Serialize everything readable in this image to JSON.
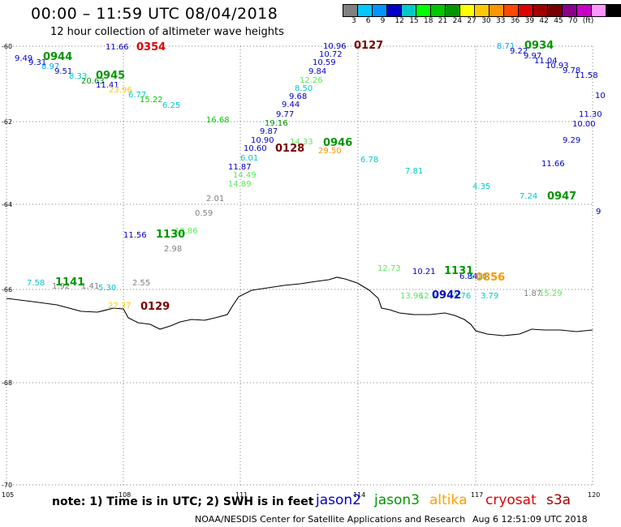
{
  "header": {
    "title": "00:00 – 11:59 UTC 08/04/2018",
    "subtitle": "12 hour collection of altimeter wave heights"
  },
  "colorbar": {
    "swatches": [
      "#808080",
      "#00c8ff",
      "#0096ff",
      "#0000c8",
      "#00c8c8",
      "#00ff00",
      "#00c800",
      "#009600",
      "#ffff00",
      "#ffc800",
      "#ff9600",
      "#ff4800",
      "#e00000",
      "#a00000",
      "#780000",
      "#8c008c",
      "#c800c8",
      "#ff96ff",
      "#000000"
    ],
    "labels": [
      "3",
      "6",
      "9",
      "12",
      "15",
      "18",
      "21",
      "24",
      "27",
      "30",
      "33",
      "36",
      "39",
      "42",
      "45",
      "70",
      "(ft)"
    ]
  },
  "axes": {
    "lat_labels": [
      "-60",
      "-62",
      "-64",
      "-66",
      "-68",
      "-70"
    ],
    "lon_labels": [
      "105",
      "108",
      "111",
      "114",
      "117",
      "120"
    ]
  },
  "observations": [
    {
      "v": "9.49",
      "c": "#0000c8"
    },
    {
      "v": "9.31",
      "c": "#0000c8"
    },
    {
      "v": "8.97",
      "c": "#00aaff"
    },
    {
      "v": "9.51",
      "c": "#0000c8"
    },
    {
      "v": "8.33",
      "c": "#00c8c8"
    },
    {
      "v": "20.63",
      "c": "#009600"
    },
    {
      "v": "11.41",
      "c": "#0000c8"
    },
    {
      "v": "23.96",
      "c": "#ffc800"
    },
    {
      "v": "6.77",
      "c": "#00c8c8"
    },
    {
      "v": "15.22",
      "c": "#00c800"
    },
    {
      "v": "6.25",
      "c": "#00c8c8"
    },
    {
      "v": "11.66",
      "c": "#0000c8"
    },
    {
      "v": "16.68",
      "c": "#00c800"
    },
    {
      "v": "10.96",
      "c": "#0000c8"
    },
    {
      "v": "10.72",
      "c": "#0000c8"
    },
    {
      "v": "10.59",
      "c": "#0000c8"
    },
    {
      "v": "9.84",
      "c": "#0000c8"
    },
    {
      "v": "12.26",
      "c": "#5ae85a"
    },
    {
      "v": "8.50",
      "c": "#00c8c8"
    },
    {
      "v": "9.68",
      "c": "#0000c8"
    },
    {
      "v": "9.44",
      "c": "#0000c8"
    },
    {
      "v": "9.77",
      "c": "#0000c8"
    },
    {
      "v": "19.16",
      "c": "#009600"
    },
    {
      "v": "9.87",
      "c": "#0000c8"
    },
    {
      "v": "10.90",
      "c": "#0000c8"
    },
    {
      "v": "10.60",
      "c": "#0000c8"
    },
    {
      "v": "14.33",
      "c": "#5ae85a"
    },
    {
      "v": "29.50",
      "c": "#ff9600"
    },
    {
      "v": "6.01",
      "c": "#00c8c8"
    },
    {
      "v": "11.87",
      "c": "#0000c8"
    },
    {
      "v": "14.49",
      "c": "#5ae85a"
    },
    {
      "v": "14.89",
      "c": "#5ae85a"
    },
    {
      "v": "2.01",
      "c": "#808080"
    },
    {
      "v": "0.59",
      "c": "#808080"
    },
    {
      "v": "6.78",
      "c": "#00c8c8"
    },
    {
      "v": "7.81",
      "c": "#00c8c8"
    },
    {
      "v": "4.35",
      "c": "#00c8c8"
    },
    {
      "v": "7.24",
      "c": "#00c8c8"
    },
    {
      "v": "8.71",
      "c": "#00aaff"
    },
    {
      "v": "9.22",
      "c": "#0000c8"
    },
    {
      "v": "9.97",
      "c": "#0000c8"
    },
    {
      "v": "11.04",
      "c": "#0000c8"
    },
    {
      "v": "10.93",
      "c": "#0000c8"
    },
    {
      "v": "9.78",
      "c": "#0000c8"
    },
    {
      "v": "11.58",
      "c": "#0000c8"
    },
    {
      "v": "10",
      "c": "#0000c8"
    },
    {
      "v": "11.30",
      "c": "#0000c8"
    },
    {
      "v": "10.00",
      "c": "#0000c8"
    },
    {
      "v": "9.29",
      "c": "#0000c8"
    },
    {
      "v": "11.66",
      "c": "#0000c8"
    },
    {
      "v": "9",
      "c": "#0000c8"
    },
    {
      "v": "11.56",
      "c": "#0000c8"
    },
    {
      "v": "12.86",
      "c": "#5ae85a"
    },
    {
      "v": "2.98",
      "c": "#808080"
    },
    {
      "v": "7.58",
      "c": "#00c8c8"
    },
    {
      "v": "1.92",
      "c": "#808080"
    },
    {
      "v": "1.41",
      "c": "#808080"
    },
    {
      "v": "5.30",
      "c": "#00c8c8"
    },
    {
      "v": "2.55",
      "c": "#808080"
    },
    {
      "v": "22.37",
      "c": "#ffc800"
    },
    {
      "v": "12.73",
      "c": "#5ae85a"
    },
    {
      "v": "10.21",
      "c": "#0000c8"
    },
    {
      "v": "5.18",
      "c": "#00c8c8"
    },
    {
      "v": "6.84",
      "c": "#0000c8"
    },
    {
      "v": "13.96",
      "c": "#5ae85a"
    },
    {
      "v": "12.9",
      "c": "#5ae85a"
    },
    {
      "v": "3.76",
      "c": "#00c8c8"
    },
    {
      "v": "3.79",
      "c": "#00c8c8"
    },
    {
      "v": "1.87",
      "c": "#808080"
    },
    {
      "v": "15.29",
      "c": "#5ae85a"
    }
  ],
  "time_labels": [
    {
      "v": "0354",
      "c": "#e00000"
    },
    {
      "v": "0944",
      "c": "#009600"
    },
    {
      "v": "0945",
      "c": "#009600"
    },
    {
      "v": "0127",
      "c": "#780000"
    },
    {
      "v": "0934",
      "c": "#009600"
    },
    {
      "v": "0128",
      "c": "#780000"
    },
    {
      "v": "0946",
      "c": "#009600"
    },
    {
      "v": "0947",
      "c": "#009600"
    },
    {
      "v": "1130",
      "c": "#009600"
    },
    {
      "v": "1141",
      "c": "#009600"
    },
    {
      "v": "0129",
      "c": "#780000"
    },
    {
      "v": "1131",
      "c": "#009600"
    },
    {
      "v": "0856",
      "c": "#ff9600"
    },
    {
      "v": "0942",
      "c": "#0000c8"
    }
  ],
  "footer": {
    "note": "note:  1) Time is in UTC;  2) SWH is in feet",
    "legend": [
      {
        "label": "jason2",
        "c": "#0000c8"
      },
      {
        "label": "jason3",
        "c": "#009600"
      },
      {
        "label": "altika",
        "c": "#ffa000"
      },
      {
        "label": "cryosat",
        "c": "#e00000"
      },
      {
        "label": "s3a",
        "c": "#a00000"
      }
    ],
    "credit": "NOAA/NESDIS Center for Satellite Applications and Research",
    "timestamp": "Aug  6 12:51:09 UTC 2018"
  }
}
